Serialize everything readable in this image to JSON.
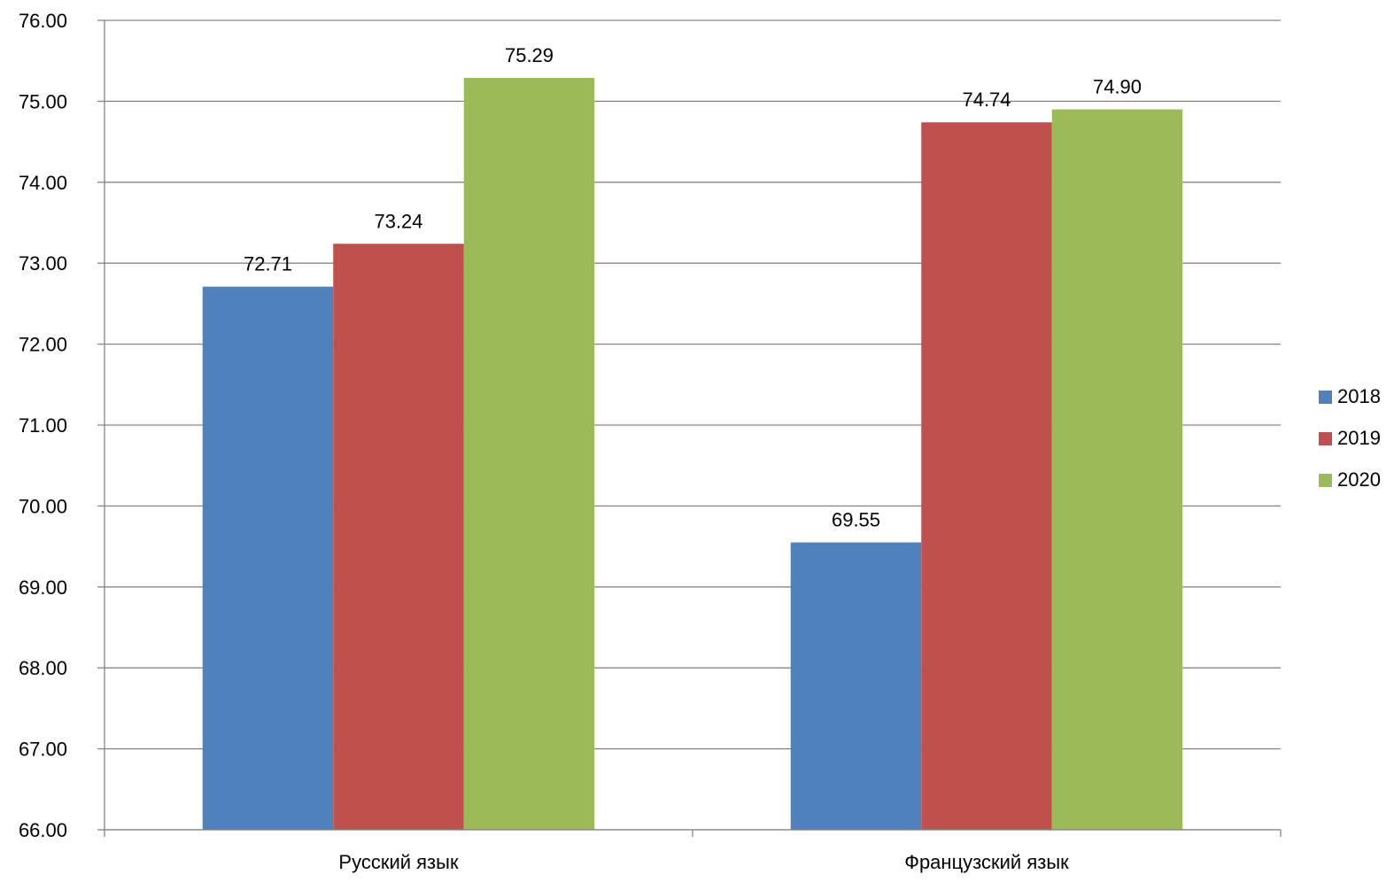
{
  "chart_data": {
    "type": "bar",
    "title": "",
    "xlabel": "",
    "ylabel": "",
    "categories": [
      "Русский язык",
      "Французский язык"
    ],
    "series": [
      {
        "name": "2018",
        "color": "#4F81BD",
        "values": [
          72.71,
          69.55
        ]
      },
      {
        "name": "2019",
        "color": "#C0504D",
        "values": [
          73.24,
          74.74
        ]
      },
      {
        "name": "2020",
        "color": "#9BBB59",
        "values": [
          75.29,
          74.9
        ]
      }
    ],
    "ylim": [
      66,
      76
    ],
    "y_ticks": [
      "66.00",
      "67.00",
      "68.00",
      "69.00",
      "70.00",
      "71.00",
      "72.00",
      "73.00",
      "74.00",
      "75.00",
      "76.00"
    ],
    "data_labels": [
      [
        "72.71",
        "69.55"
      ],
      [
        "73.24",
        "74.74"
      ],
      [
        "75.29",
        "74.90"
      ]
    ],
    "grid": true,
    "legend_position": "right",
    "gridline_color": "#868686",
    "axis_color": "#868686"
  }
}
